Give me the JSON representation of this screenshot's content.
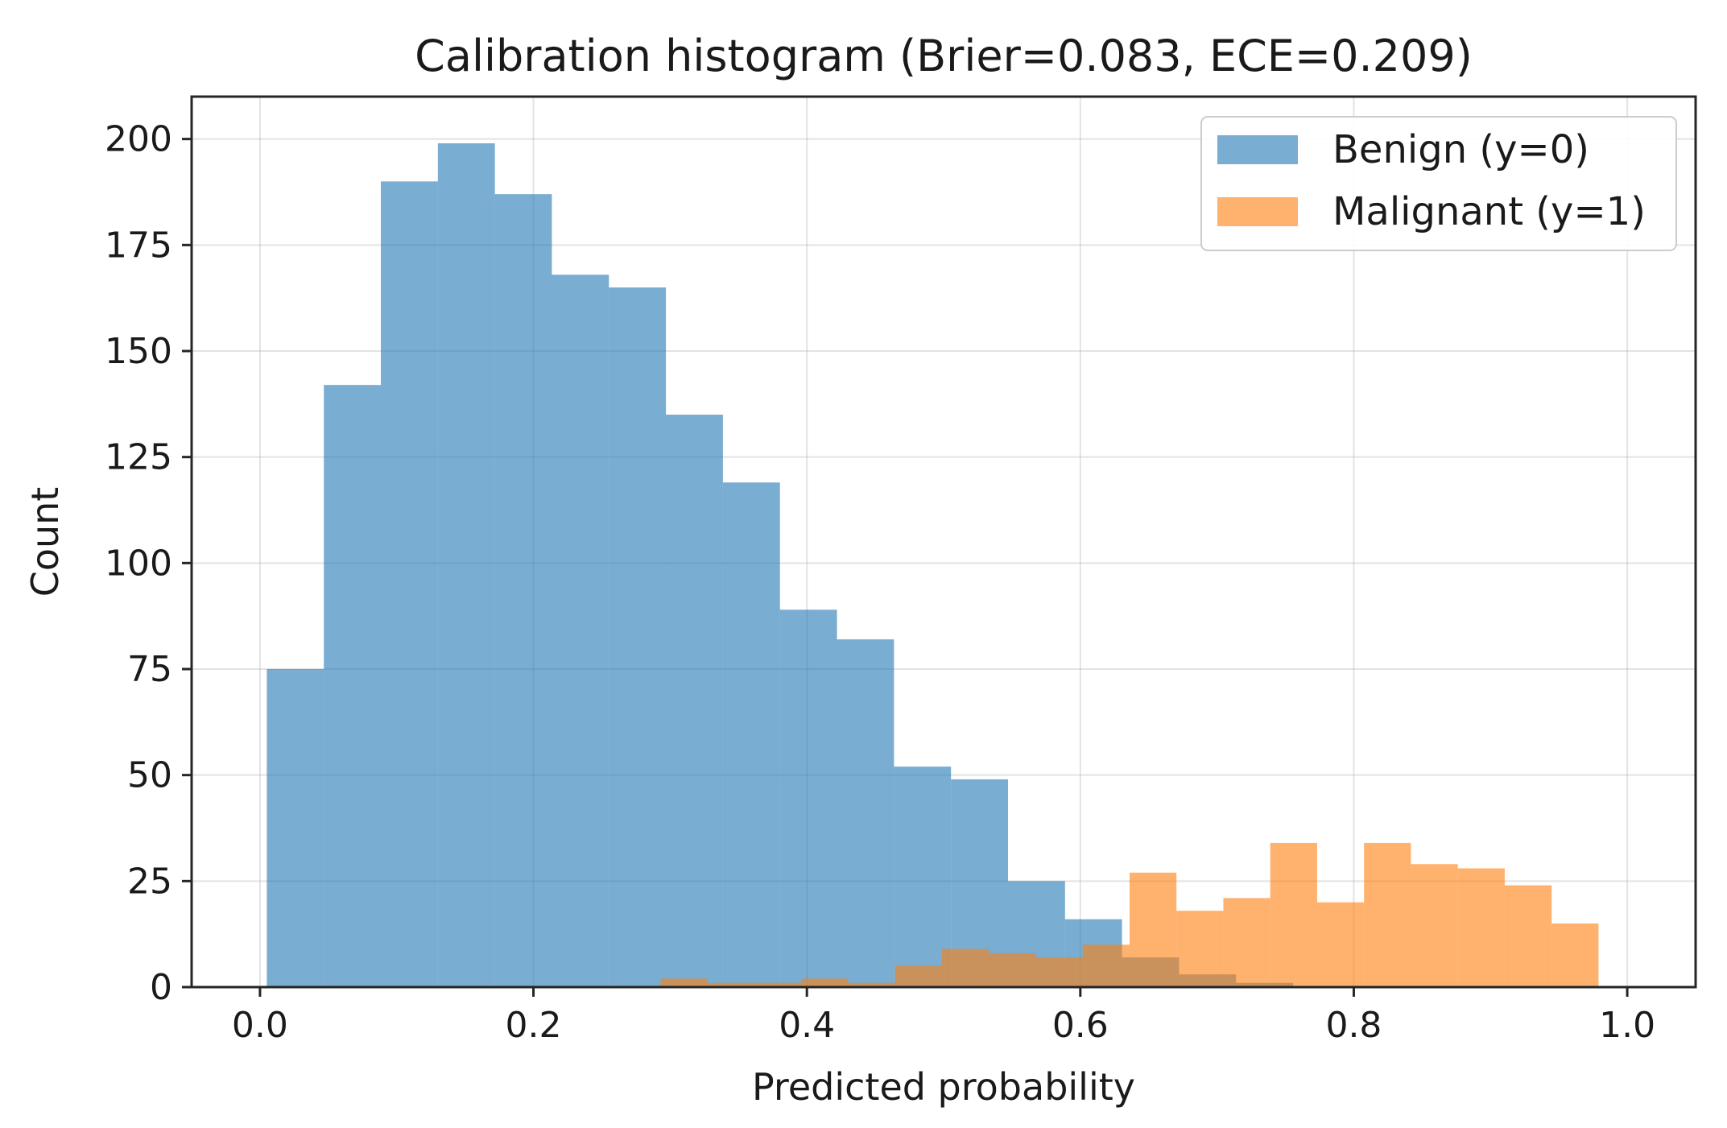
{
  "chart_data": {
    "type": "histogram",
    "title": "Calibration histogram (Brier=0.083, ECE=0.209)",
    "xlabel": "Predicted probability",
    "ylabel": "Count",
    "xlim": [
      -0.05,
      1.05
    ],
    "ylim": [
      0,
      210
    ],
    "xticks": [
      "0.0",
      "0.2",
      "0.4",
      "0.6",
      "0.8",
      "1.0"
    ],
    "xtick_values": [
      0.0,
      0.2,
      0.4,
      0.6,
      0.8,
      1.0
    ],
    "yticks": [
      "0",
      "25",
      "50",
      "75",
      "100",
      "125",
      "150",
      "175",
      "200"
    ],
    "ytick_values": [
      0,
      25,
      50,
      75,
      100,
      125,
      150,
      175,
      200
    ],
    "grid": true,
    "legend_position": "top-right",
    "series": [
      {
        "name": "Benign (y=0)",
        "color": "#1f77b4",
        "opacity": 0.6,
        "bin_start": 0.005,
        "bin_width": 0.0417,
        "values": [
          75,
          142,
          190,
          199,
          187,
          168,
          165,
          135,
          119,
          89,
          82,
          52,
          49,
          25,
          16,
          7,
          3,
          1,
          0,
          0,
          0,
          0,
          0,
          0
        ]
      },
      {
        "name": "Malignant (y=1)",
        "color": "#ff7f0e",
        "opacity": 0.6,
        "bin_start": 0.293,
        "bin_width": 0.0343,
        "values": [
          2,
          1,
          1,
          2,
          1,
          5,
          9,
          8,
          7,
          10,
          27,
          18,
          21,
          34,
          20,
          34,
          29,
          28,
          24,
          15
        ]
      }
    ]
  }
}
